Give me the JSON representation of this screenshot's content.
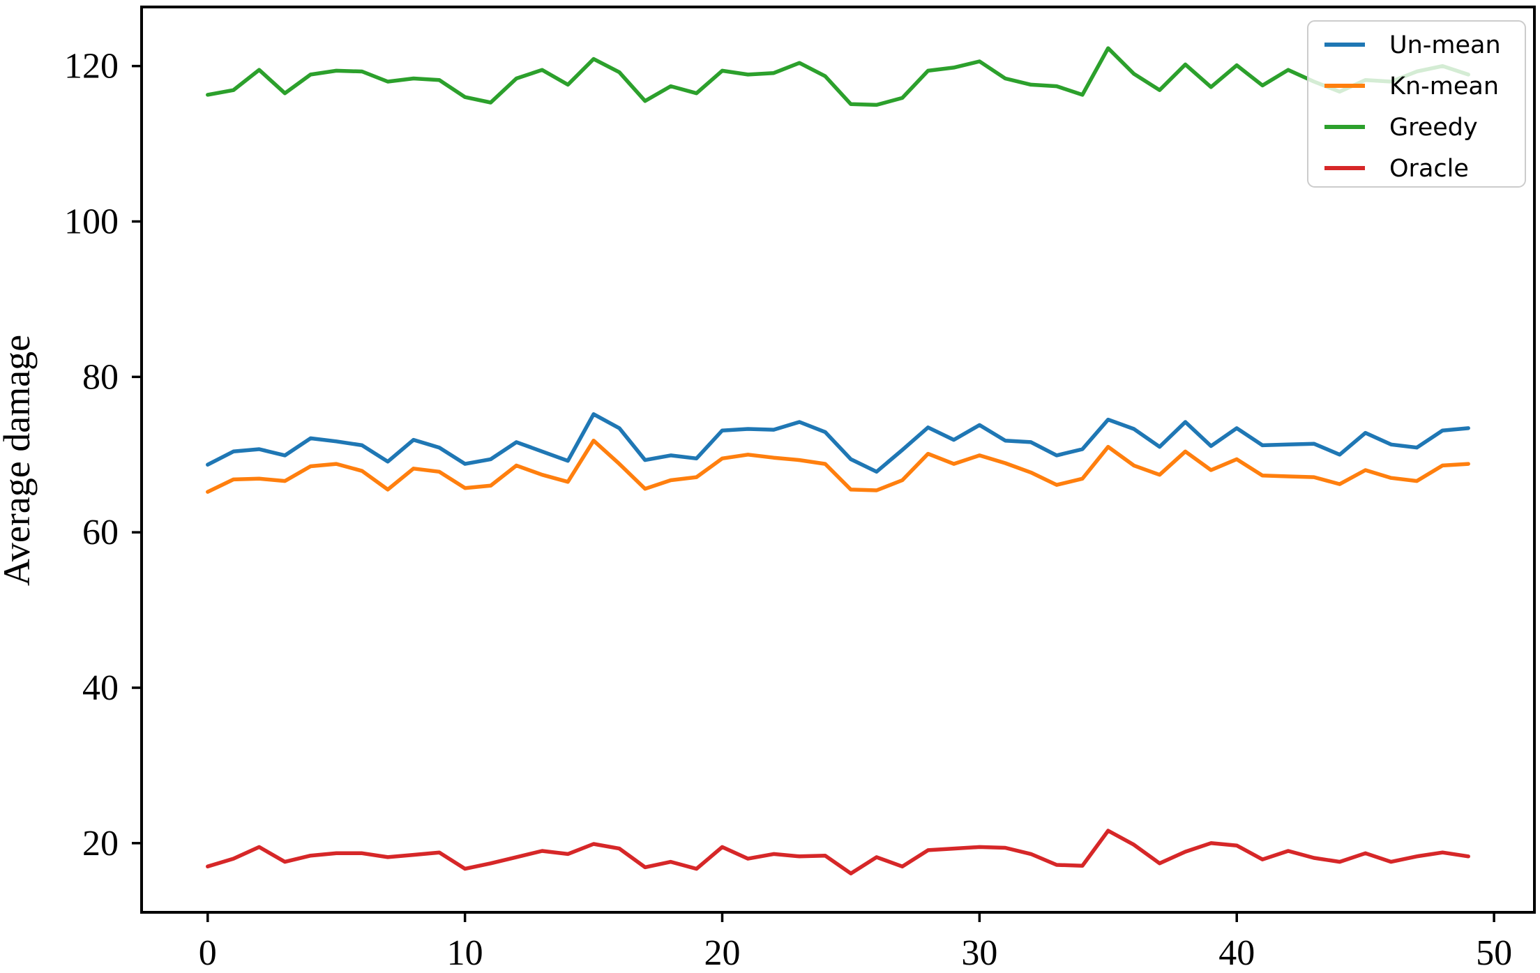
{
  "figure": {
    "background": "#ffffff",
    "axes_color": "#000000"
  },
  "chart_data": {
    "type": "line",
    "title": "",
    "xlabel": "",
    "ylabel": "Average damage",
    "xticks": [
      0,
      10,
      20,
      30,
      40,
      50
    ],
    "yticks": [
      20,
      40,
      60,
      80,
      100,
      120
    ],
    "xlim": [
      -2.57,
      51.57
    ],
    "ylim": [
      11.1,
      127.6
    ],
    "grid": false,
    "legend_position": "upper right",
    "x_start": 0,
    "x_step": 1,
    "series": [
      {
        "name": "Un-mean",
        "color": "#1f77b4",
        "values": [
          68.7,
          70.4,
          70.7,
          69.9,
          72.1,
          71.7,
          71.2,
          69.1,
          71.9,
          70.9,
          68.8,
          69.4,
          71.6,
          70.4,
          69.2,
          75.2,
          73.4,
          69.3,
          69.9,
          69.5,
          73.1,
          73.3,
          73.2,
          74.2,
          72.9,
          69.4,
          67.8,
          70.6,
          73.5,
          71.9,
          73.8,
          71.8,
          71.6,
          69.9,
          70.7,
          74.5,
          73.3,
          71.0,
          74.2,
          71.1,
          73.4,
          71.2,
          71.3,
          71.4,
          70.0,
          72.8,
          71.3,
          70.9,
          73.1,
          73.4
        ]
      },
      {
        "name": "Kn-mean",
        "color": "#ff7f0e",
        "values": [
          65.2,
          66.8,
          66.9,
          66.6,
          68.5,
          68.8,
          67.9,
          65.5,
          68.2,
          67.8,
          65.7,
          66.0,
          68.6,
          67.4,
          66.5,
          71.8,
          68.8,
          65.6,
          66.7,
          67.1,
          69.5,
          70.0,
          69.6,
          69.3,
          68.8,
          65.5,
          65.4,
          66.7,
          70.1,
          68.8,
          69.9,
          68.9,
          67.7,
          66.1,
          66.9,
          71.0,
          68.6,
          67.4,
          70.4,
          68.0,
          69.4,
          67.3,
          67.2,
          67.1,
          66.2,
          68.0,
          67.0,
          66.6,
          68.6,
          68.8
        ]
      },
      {
        "name": "Greedy",
        "color": "#2ca02c",
        "values": [
          116.3,
          116.9,
          119.5,
          116.5,
          118.9,
          119.4,
          119.3,
          118.0,
          118.4,
          118.2,
          116.0,
          115.3,
          118.4,
          119.5,
          117.6,
          120.9,
          119.2,
          115.5,
          117.4,
          116.5,
          119.4,
          118.9,
          119.1,
          120.4,
          118.7,
          115.1,
          115.0,
          115.9,
          119.4,
          119.8,
          120.6,
          118.4,
          117.6,
          117.4,
          116.3,
          122.3,
          119.0,
          116.9,
          120.2,
          117.3,
          120.1,
          117.5,
          119.5,
          118.0,
          116.7,
          118.2,
          118.0,
          119.3,
          120.0,
          118.9
        ]
      },
      {
        "name": "Oracle",
        "color": "#d62728",
        "values": [
          17.0,
          18.0,
          19.5,
          17.6,
          18.4,
          18.7,
          18.7,
          18.2,
          18.5,
          18.8,
          16.7,
          17.4,
          18.2,
          19.0,
          18.6,
          19.9,
          19.3,
          16.9,
          17.6,
          16.7,
          19.5,
          18.0,
          18.6,
          18.3,
          18.4,
          16.1,
          18.2,
          17.0,
          19.1,
          19.3,
          19.5,
          19.4,
          18.6,
          17.2,
          17.1,
          21.6,
          19.8,
          17.4,
          18.9,
          20.0,
          19.7,
          17.9,
          19.0,
          18.1,
          17.6,
          18.7,
          17.6,
          18.3,
          18.8,
          18.3
        ]
      }
    ]
  }
}
